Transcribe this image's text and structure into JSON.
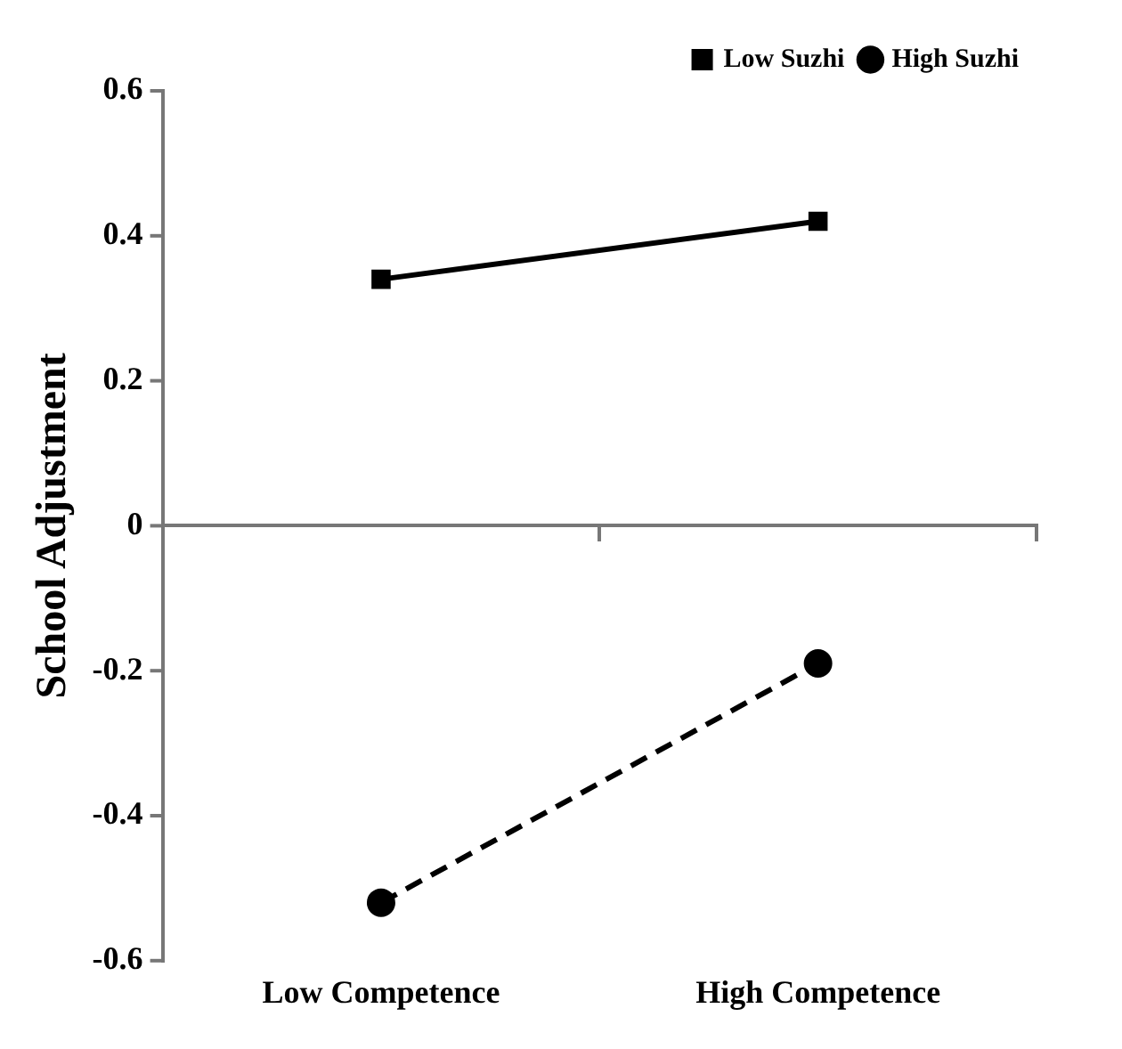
{
  "chart_data": {
    "type": "line",
    "ylabel": "School Adjustment",
    "categories": [
      "Low Competence",
      "High Competence"
    ],
    "series": [
      {
        "name": "Low Suzhi",
        "color": "#000000",
        "values": [
          0.34,
          0.42
        ],
        "marker": "square",
        "line_style": "solid"
      },
      {
        "name": "High Suzhi",
        "color": "#000000",
        "values": [
          -0.52,
          -0.19
        ],
        "marker": "circle",
        "line_style": "dashed"
      }
    ],
    "ylim": [
      -0.6,
      0.6
    ],
    "yticks": [
      -0.6,
      -0.4,
      -0.2,
      0,
      0.2,
      0.4,
      0.6
    ],
    "legend": "top right"
  }
}
